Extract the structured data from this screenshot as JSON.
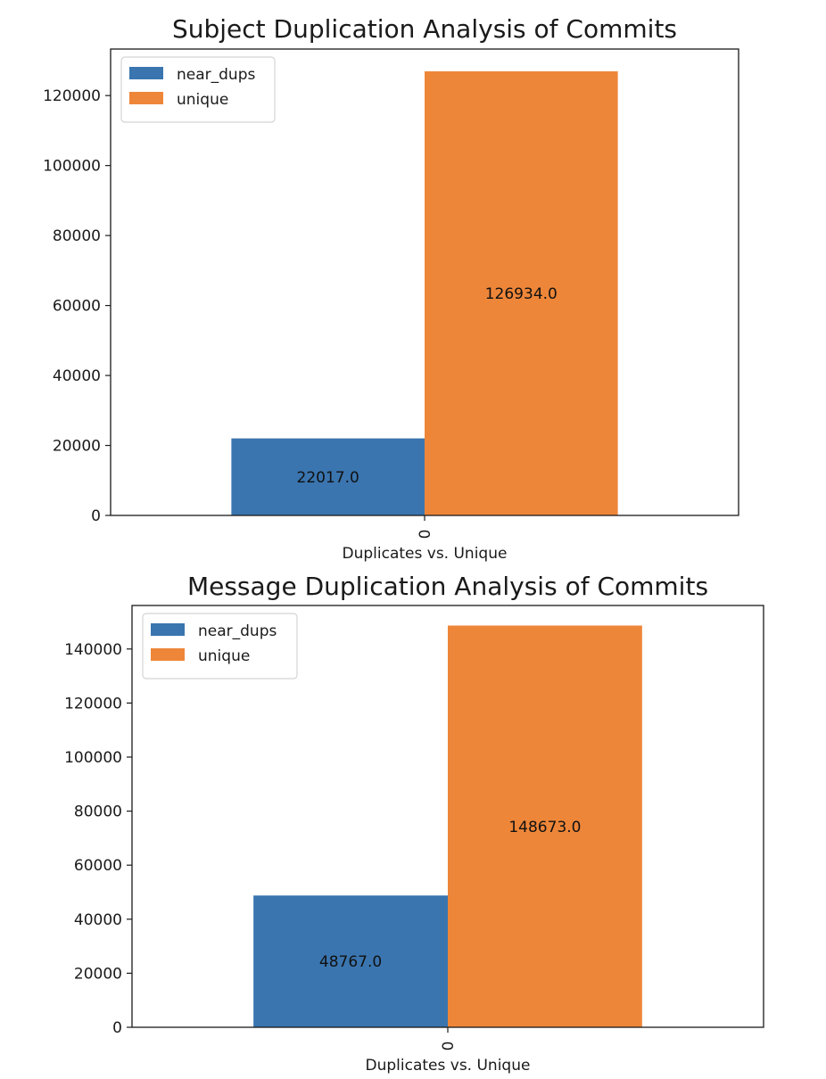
{
  "chart_data": [
    {
      "type": "bar",
      "title": "Subject Duplication Analysis of Commits",
      "xlabel": "Duplicates vs. Unique",
      "ylabel": "",
      "categories": [
        "0"
      ],
      "series": [
        {
          "name": "near_dups",
          "values": [
            22017.0
          ],
          "color": "#3a75af",
          "label": "22017.0"
        },
        {
          "name": "unique",
          "values": [
            126934.0
          ],
          "color": "#ee8639",
          "label": "126934.0"
        }
      ],
      "ylim": [
        0,
        133300
      ],
      "yticks": [
        0,
        20000,
        40000,
        60000,
        80000,
        100000,
        120000
      ],
      "ytick_labels": [
        "0",
        "20000",
        "40000",
        "60000",
        "80000",
        "100000",
        "120000"
      ],
      "legend": "top-left",
      "grid": false
    },
    {
      "type": "bar",
      "title": "Message Duplication Analysis of Commits",
      "xlabel": "Duplicates vs. Unique",
      "ylabel": "",
      "categories": [
        "0"
      ],
      "series": [
        {
          "name": "near_dups",
          "values": [
            48767.0
          ],
          "color": "#3a75af",
          "label": "48767.0"
        },
        {
          "name": "unique",
          "values": [
            148673.0
          ],
          "color": "#ee8639",
          "label": "148673.0"
        }
      ],
      "ylim": [
        0,
        156100
      ],
      "yticks": [
        0,
        20000,
        40000,
        60000,
        80000,
        100000,
        120000,
        140000
      ],
      "ytick_labels": [
        "0",
        "20000",
        "40000",
        "60000",
        "80000",
        "100000",
        "120000",
        "140000"
      ],
      "legend": "top-left",
      "grid": false
    }
  ]
}
